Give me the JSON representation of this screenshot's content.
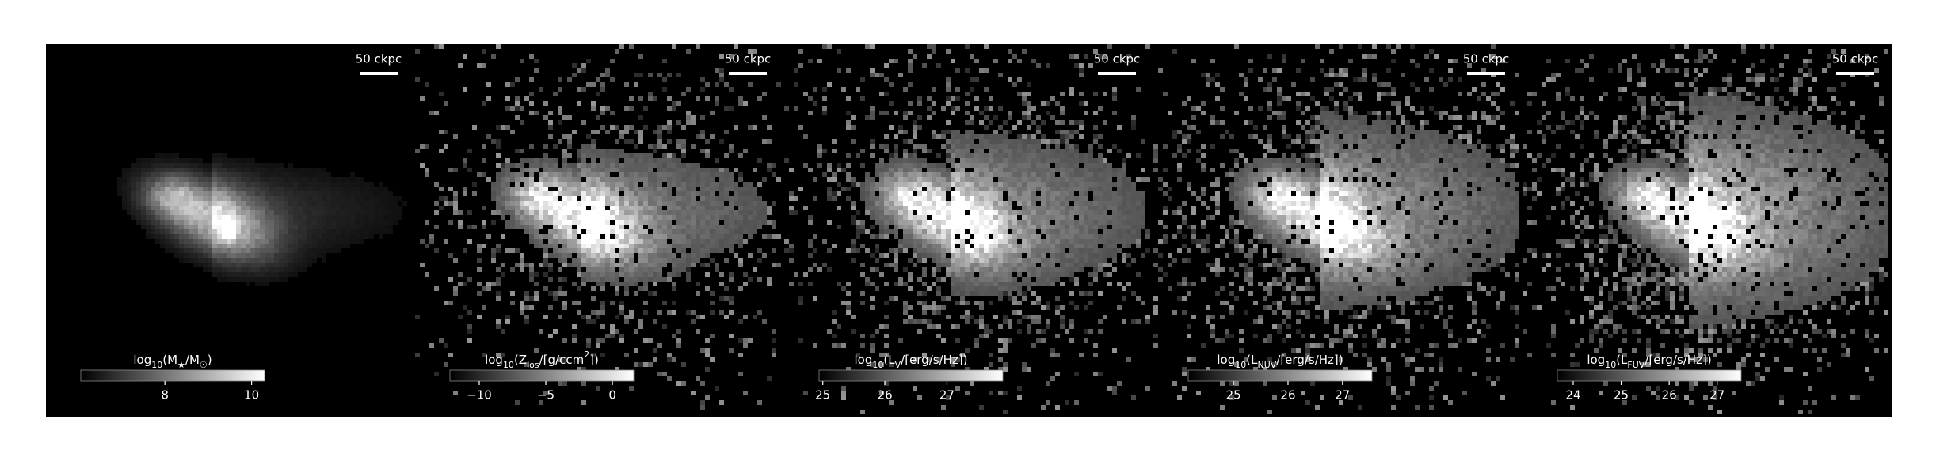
{
  "panels": [
    {
      "scale_label": "50 ckpc",
      "colorbar": {
        "label": [
          {
            "text": "log"
          },
          {
            "text": "10",
            "script": "sub"
          },
          {
            "text": "(M"
          },
          {
            "text": "★",
            "script": "sub"
          },
          {
            "text": "/M"
          },
          {
            "text": "☉",
            "script": "sub"
          },
          {
            "text": ")"
          }
        ],
        "lim": [
          6.06,
          10.3
        ],
        "ticks": [
          8,
          10
        ]
      }
    },
    {
      "scale_label": "50 ckpc",
      "colorbar": {
        "label": [
          {
            "text": "log"
          },
          {
            "text": "10",
            "script": "sub"
          },
          {
            "text": "(Z"
          },
          {
            "text": "los",
            "script": "sub"
          },
          {
            "text": "/[g/ccm"
          },
          {
            "text": "2",
            "script": "sup"
          },
          {
            "text": "])"
          }
        ],
        "lim": [
          -12.2,
          1.6
        ],
        "ticks": [
          {
            "value": -10,
            "label": "−10"
          },
          {
            "value": -5,
            "label": "−5"
          },
          0
        ]
      }
    },
    {
      "scale_label": "50 ckpc",
      "colorbar": {
        "label": [
          {
            "text": "log"
          },
          {
            "text": "10",
            "script": "sub"
          },
          {
            "text": "(L"
          },
          {
            "text": "V",
            "script": "sub"
          },
          {
            "text": "/[erg/s/Hz])"
          }
        ],
        "lim": [
          24.94,
          27.9
        ],
        "ticks": [
          25,
          26,
          27
        ]
      }
    },
    {
      "scale_label": "50 ckpc",
      "colorbar": {
        "label": [
          {
            "text": "log"
          },
          {
            "text": "10",
            "script": "sub"
          },
          {
            "text": "(L"
          },
          {
            "text": "NUV",
            "script": "sub"
          },
          {
            "text": "/[erg/s/Hz])"
          }
        ],
        "lim": [
          24.17,
          27.54
        ],
        "ticks": [
          25,
          26,
          27
        ]
      }
    },
    {
      "scale_label": "50 ckpc",
      "colorbar": {
        "label": [
          {
            "text": "log"
          },
          {
            "text": "10",
            "script": "sub"
          },
          {
            "text": "(L"
          },
          {
            "text": "FUV",
            "script": "sub"
          },
          {
            "text": "/[erg/s/Hz])"
          }
        ],
        "lim": [
          23.67,
          27.5
        ],
        "ticks": [
          24,
          25,
          26,
          27
        ]
      }
    }
  ]
}
